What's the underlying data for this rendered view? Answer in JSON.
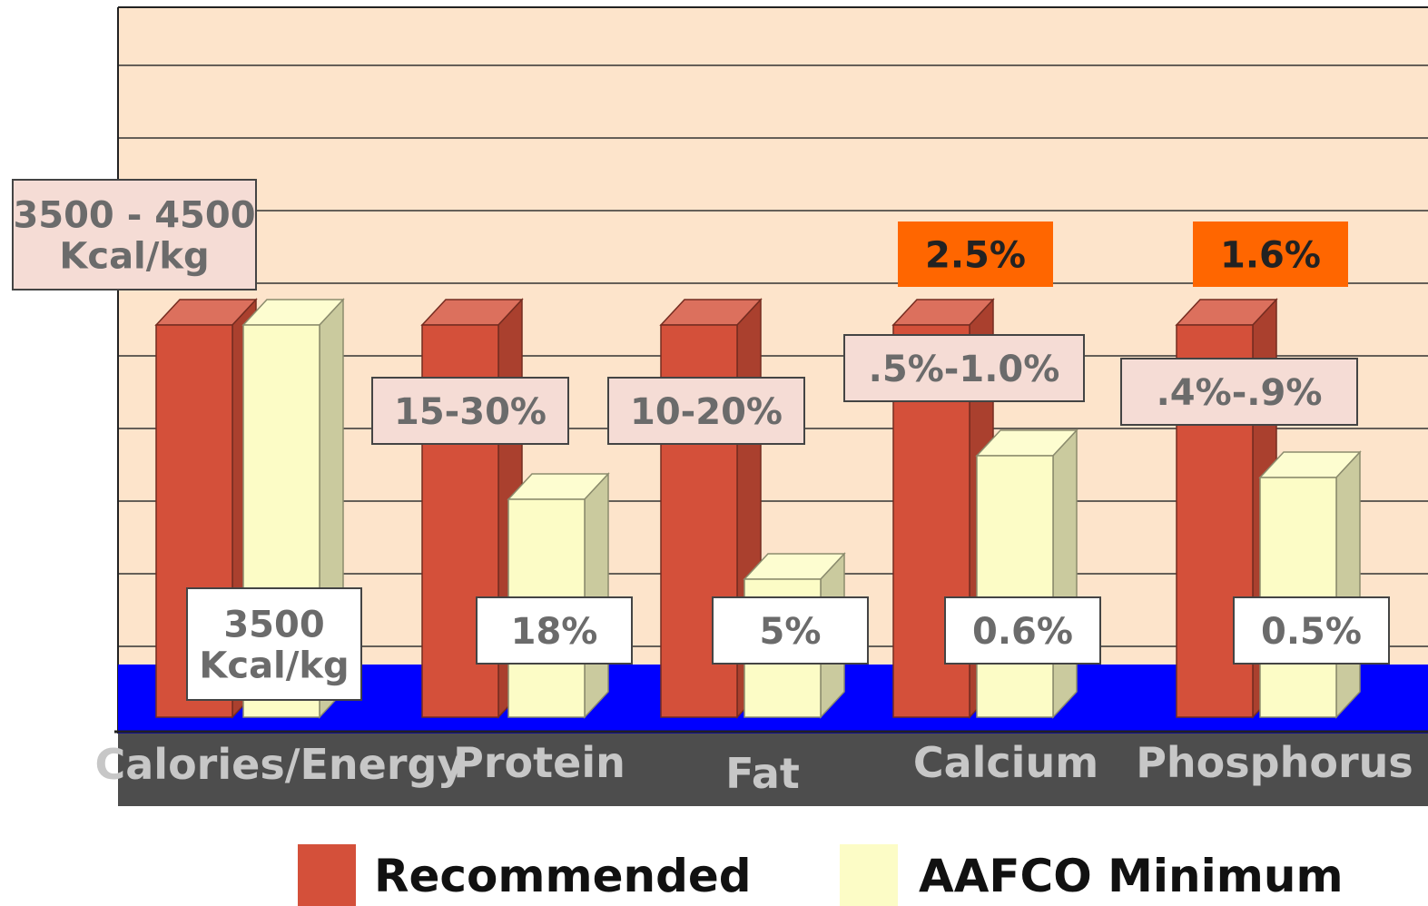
{
  "chart_data": {
    "type": "bar",
    "title": "",
    "xlabel": "",
    "ylabel": "",
    "categories": [
      "Calories/Energy",
      "Protein",
      "Fat",
      "Calcium",
      "Phosphorus"
    ],
    "series": [
      {
        "name": "Recommended",
        "color": "#d4503a",
        "values": [
          5.4,
          5.4,
          5.4,
          5.4,
          5.4
        ],
        "labels": [
          "3500 - 4500 Kcal/kg",
          "15-30%",
          "10-20%",
          ".5%-1.0%",
          ".4%-.9%"
        ]
      },
      {
        "name": "AAFCO Minimum",
        "color": "#fcfcc6",
        "values": [
          5.4,
          3.0,
          1.9,
          3.6,
          3.3
        ],
        "labels": [
          "3500 Kcal/kg",
          "18%",
          "5%",
          "0.6%",
          "0.5%"
        ]
      }
    ],
    "maximum_labels": [
      "",
      "",
      "",
      "2.5%",
      "1.6%"
    ],
    "ylim": [
      0,
      9
    ],
    "grid": true,
    "legend": "bottom",
    "colors": {
      "plot_background": "#fde4cb",
      "floor": "#0000ff",
      "axis_band": "#4d4d4d",
      "category_text": "#c7c7c7",
      "range_label_fill": "#f5dcd5",
      "minimum_label_fill": "#ffffff",
      "maximum_label_fill": "#ff6600"
    }
  },
  "legend": {
    "recommended_label": "Recommended",
    "minimum_label": "AAFCO Minimum"
  }
}
